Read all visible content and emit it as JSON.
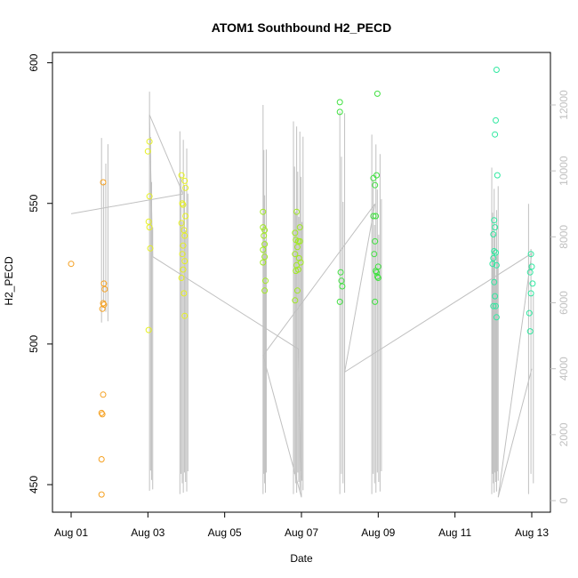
{
  "chart_data": {
    "type": "scatter",
    "title": "ATOM1 Southbound H2_PECD",
    "xlabel": "Date",
    "ylabel": "H2_PECD",
    "xlim": [
      "2018-08-01",
      "2018-08-13"
    ],
    "x_ticks": [
      {
        "label": "Aug 01",
        "x": "2018-08-01"
      },
      {
        "label": "Aug 03",
        "x": "2018-08-03"
      },
      {
        "label": "Aug 05",
        "x": "2018-08-05"
      },
      {
        "label": "Aug 07",
        "x": "2018-08-07"
      },
      {
        "label": "Aug 09",
        "x": "2018-08-09"
      },
      {
        "label": "Aug 11",
        "x": "2018-08-11"
      },
      {
        "label": "Aug 13",
        "x": "2018-08-13"
      }
    ],
    "y_left": {
      "ylim": [
        443,
        603
      ],
      "ticks": [
        450,
        500,
        550,
        600
      ]
    },
    "y_right": {
      "ylim": [
        -300,
        13000
      ],
      "ticks": [
        0,
        2000,
        4000,
        6000,
        8000,
        10000,
        12000
      ],
      "color": "#c0c0c0"
    },
    "grid": false,
    "legend": "none",
    "points": [
      {
        "x": "2018-08-01T00:00",
        "y": 528.5,
        "color": "#f5a020"
      },
      {
        "x": "2018-08-01T20:00",
        "y": 557.5,
        "color": "#f5a020"
      },
      {
        "x": "2018-08-01T20:30",
        "y": 521.5,
        "color": "#f5a020"
      },
      {
        "x": "2018-08-01T21:00",
        "y": 519.5,
        "color": "#f5a020"
      },
      {
        "x": "2018-08-01T20:00",
        "y": 514.5,
        "color": "#f5a020"
      },
      {
        "x": "2018-08-01T20:30",
        "y": 514.0,
        "color": "#f5a020"
      },
      {
        "x": "2018-08-01T19:30",
        "y": 512.5,
        "color": "#f5a020"
      },
      {
        "x": "2018-08-01T20:00",
        "y": 482.0,
        "color": "#f5a020"
      },
      {
        "x": "2018-08-01T19:00",
        "y": 475.5,
        "color": "#f5a020"
      },
      {
        "x": "2018-08-01T19:30",
        "y": 475.0,
        "color": "#f5a020"
      },
      {
        "x": "2018-08-01T19:00",
        "y": 459.0,
        "color": "#f5a020"
      },
      {
        "x": "2018-08-01T19:00",
        "y": 446.5,
        "color": "#f5a020"
      },
      {
        "x": "2018-08-03T01:00",
        "y": 572.0,
        "color": "#e6f020"
      },
      {
        "x": "2018-08-03T00:00",
        "y": 568.5,
        "color": "#e6f020"
      },
      {
        "x": "2018-08-03T01:00",
        "y": 552.5,
        "color": "#e6f020"
      },
      {
        "x": "2018-08-03T00:30",
        "y": 543.5,
        "color": "#e6f020"
      },
      {
        "x": "2018-08-03T01:00",
        "y": 541.5,
        "color": "#e6f020"
      },
      {
        "x": "2018-08-03T01:30",
        "y": 534.0,
        "color": "#e6f020"
      },
      {
        "x": "2018-08-03T00:30",
        "y": 505.0,
        "color": "#e6f020"
      },
      {
        "x": "2018-08-03T21:00",
        "y": 560.0,
        "color": "#e6f020"
      },
      {
        "x": "2018-08-03T23:00",
        "y": 558.0,
        "color": "#e6f020"
      },
      {
        "x": "2018-08-03T23:30",
        "y": 555.5,
        "color": "#e6f020"
      },
      {
        "x": "2018-08-03T21:30",
        "y": 550.0,
        "color": "#e6f020"
      },
      {
        "x": "2018-08-03T22:00",
        "y": 549.5,
        "color": "#e6f020"
      },
      {
        "x": "2018-08-03T23:30",
        "y": 545.5,
        "color": "#e6f020"
      },
      {
        "x": "2018-08-03T21:00",
        "y": 543.0,
        "color": "#e6f020"
      },
      {
        "x": "2018-08-03T22:30",
        "y": 540.5,
        "color": "#e6f020"
      },
      {
        "x": "2018-08-03T23:00",
        "y": 538.5,
        "color": "#e6f020"
      },
      {
        "x": "2018-08-03T22:00",
        "y": 535.0,
        "color": "#e6f020"
      },
      {
        "x": "2018-08-03T21:30",
        "y": 532.0,
        "color": "#e6f020"
      },
      {
        "x": "2018-08-03T23:00",
        "y": 529.5,
        "color": "#e6f020"
      },
      {
        "x": "2018-08-03T22:00",
        "y": 526.5,
        "color": "#e6f020"
      },
      {
        "x": "2018-08-03T21:00",
        "y": 523.5,
        "color": "#e6f020"
      },
      {
        "x": "2018-08-03T22:30",
        "y": 518.0,
        "color": "#e6f020"
      },
      {
        "x": "2018-08-03T23:00",
        "y": 510.0,
        "color": "#e6f020"
      },
      {
        "x": "2018-08-06T00:00",
        "y": 547.0,
        "color": "#a0ea20"
      },
      {
        "x": "2018-08-06T00:00",
        "y": 541.5,
        "color": "#a0ea20"
      },
      {
        "x": "2018-08-06T01:00",
        "y": 540.5,
        "color": "#a0ea20"
      },
      {
        "x": "2018-08-06T00:30",
        "y": 538.5,
        "color": "#a0ea20"
      },
      {
        "x": "2018-08-06T01:00",
        "y": 535.5,
        "color": "#a0ea20"
      },
      {
        "x": "2018-08-06T00:00",
        "y": 533.5,
        "color": "#a0ea20"
      },
      {
        "x": "2018-08-06T01:00",
        "y": 531.0,
        "color": "#a0ea20"
      },
      {
        "x": "2018-08-06T00:00",
        "y": 529.0,
        "color": "#a0ea20"
      },
      {
        "x": "2018-08-06T01:30",
        "y": 522.5,
        "color": "#a0ea20"
      },
      {
        "x": "2018-08-06T01:00",
        "y": 519.0,
        "color": "#a0ea20"
      },
      {
        "x": "2018-08-06T20:00",
        "y": 539.5,
        "color": "#a0ea20"
      },
      {
        "x": "2018-08-06T21:00",
        "y": 547.0,
        "color": "#a0ea20"
      },
      {
        "x": "2018-08-06T20:30",
        "y": 537.0,
        "color": "#a0ea20"
      },
      {
        "x": "2018-08-06T22:00",
        "y": 536.5,
        "color": "#a0ea20"
      },
      {
        "x": "2018-08-06T23:00",
        "y": 541.5,
        "color": "#a0ea20"
      },
      {
        "x": "2018-08-06T21:30",
        "y": 534.5,
        "color": "#a0ea20"
      },
      {
        "x": "2018-08-06T20:00",
        "y": 532.0,
        "color": "#a0ea20"
      },
      {
        "x": "2018-08-06T22:30",
        "y": 530.5,
        "color": "#a0ea20"
      },
      {
        "x": "2018-08-06T21:00",
        "y": 528.0,
        "color": "#a0ea20"
      },
      {
        "x": "2018-08-06T23:30",
        "y": 529.0,
        "color": "#a0ea20"
      },
      {
        "x": "2018-08-06T20:30",
        "y": 526.0,
        "color": "#a0ea20"
      },
      {
        "x": "2018-08-06T22:00",
        "y": 526.5,
        "color": "#a0ea20"
      },
      {
        "x": "2018-08-06T23:00",
        "y": 536.5,
        "color": "#a0ea20"
      },
      {
        "x": "2018-08-06T21:30",
        "y": 519.0,
        "color": "#a0ea20"
      },
      {
        "x": "2018-08-06T20:00",
        "y": 515.5,
        "color": "#a0ea20"
      },
      {
        "x": "2018-08-08T00:00",
        "y": 586.0,
        "color": "#40e040"
      },
      {
        "x": "2018-08-08T00:00",
        "y": 582.5,
        "color": "#40e040"
      },
      {
        "x": "2018-08-08T00:30",
        "y": 525.5,
        "color": "#40e040"
      },
      {
        "x": "2018-08-08T01:00",
        "y": 522.5,
        "color": "#40e040"
      },
      {
        "x": "2018-08-08T01:30",
        "y": 520.5,
        "color": "#40e040"
      },
      {
        "x": "2018-08-08T00:00",
        "y": 515.0,
        "color": "#40e040"
      },
      {
        "x": "2018-08-08T21:00",
        "y": 559.0,
        "color": "#40e040"
      },
      {
        "x": "2018-08-08T22:00",
        "y": 556.5,
        "color": "#40e040"
      },
      {
        "x": "2018-08-08T23:00",
        "y": 560.0,
        "color": "#40e040"
      },
      {
        "x": "2018-08-08T23:30",
        "y": 589.0,
        "color": "#40e040"
      },
      {
        "x": "2018-08-08T21:00",
        "y": 545.5,
        "color": "#40e040"
      },
      {
        "x": "2018-08-08T22:30",
        "y": 545.5,
        "color": "#40e040"
      },
      {
        "x": "2018-08-08T22:00",
        "y": 536.5,
        "color": "#40e040"
      },
      {
        "x": "2018-08-08T21:30",
        "y": 532.0,
        "color": "#40e040"
      },
      {
        "x": "2018-08-09T00:00",
        "y": 527.5,
        "color": "#40e040"
      },
      {
        "x": "2018-08-08T23:00",
        "y": 525.5,
        "color": "#40e040"
      },
      {
        "x": "2018-08-08T22:30",
        "y": 526.0,
        "color": "#40e040"
      },
      {
        "x": "2018-08-08T23:30",
        "y": 524.0,
        "color": "#40e040"
      },
      {
        "x": "2018-08-09T00:00",
        "y": 523.5,
        "color": "#40e040"
      },
      {
        "x": "2018-08-08T22:00",
        "y": 515.0,
        "color": "#40e040"
      },
      {
        "x": "2018-08-12T02:00",
        "y": 597.5,
        "color": "#30e8a0"
      },
      {
        "x": "2018-08-12T01:30",
        "y": 579.5,
        "color": "#30e8a0"
      },
      {
        "x": "2018-08-12T01:00",
        "y": 574.5,
        "color": "#30e8a0"
      },
      {
        "x": "2018-08-12T02:30",
        "y": 560.0,
        "color": "#30e8a0"
      },
      {
        "x": "2018-08-12T00:30",
        "y": 544.0,
        "color": "#30e8a0"
      },
      {
        "x": "2018-08-12T01:00",
        "y": 541.5,
        "color": "#30e8a0"
      },
      {
        "x": "2018-08-12T00:00",
        "y": 539.0,
        "color": "#30e8a0"
      },
      {
        "x": "2018-08-12T00:30",
        "y": 533.0,
        "color": "#30e8a0"
      },
      {
        "x": "2018-08-12T01:30",
        "y": 532.5,
        "color": "#30e8a0"
      },
      {
        "x": "2018-08-12T00:00",
        "y": 530.5,
        "color": "#30e8a0"
      },
      {
        "x": "2018-08-11T23:30",
        "y": 528.5,
        "color": "#30e8a0"
      },
      {
        "x": "2018-08-12T02:00",
        "y": 528.0,
        "color": "#30e8a0"
      },
      {
        "x": "2018-08-12T00:30",
        "y": 522.0,
        "color": "#30e8a0"
      },
      {
        "x": "2018-08-12T01:00",
        "y": 517.0,
        "color": "#30e8a0"
      },
      {
        "x": "2018-08-12T00:00",
        "y": 513.5,
        "color": "#30e8a0"
      },
      {
        "x": "2018-08-12T01:30",
        "y": 513.5,
        "color": "#30e8a0"
      },
      {
        "x": "2018-08-12T02:00",
        "y": 509.5,
        "color": "#30e8a0"
      },
      {
        "x": "2018-08-12T23:30",
        "y": 532.0,
        "color": "#30e8a0"
      },
      {
        "x": "2018-08-13T00:00",
        "y": 527.5,
        "color": "#30e8a0"
      },
      {
        "x": "2018-08-12T23:00",
        "y": 525.5,
        "color": "#30e8a0"
      },
      {
        "x": "2018-08-13T00:30",
        "y": 521.5,
        "color": "#30e8a0"
      },
      {
        "x": "2018-08-12T23:30",
        "y": 518.0,
        "color": "#30e8a0"
      },
      {
        "x": "2018-08-12T22:30",
        "y": 511.0,
        "color": "#30e8a0"
      },
      {
        "x": "2018-08-12T23:00",
        "y": 504.5,
        "color": "#30e8a0"
      }
    ],
    "line_series": {
      "name": "",
      "axis": "right",
      "color": "#c0c0c0",
      "points": [
        {
          "x": "2018-08-01T00:00",
          "y": 8700
        },
        {
          "x": "2018-08-03T22:00",
          "y": 9300
        },
        {
          "x": "2018-08-03T01:00",
          "y": 11700
        },
        {
          "x": "2018-08-03T03:00",
          "y": 7400
        },
        {
          "x": "2018-08-06T22:00",
          "y": 4600
        },
        {
          "x": "2018-08-07T00:00",
          "y": 100
        },
        {
          "x": "2018-08-06T00:00",
          "y": 4400
        },
        {
          "x": "2018-08-08T22:00",
          "y": 9000
        },
        {
          "x": "2018-08-08T03:00",
          "y": 3900
        },
        {
          "x": "2018-08-13T00:00",
          "y": 7500
        },
        {
          "x": "2018-08-12T03:00",
          "y": 100
        },
        {
          "x": "2018-08-13T00:00",
          "y": 4000
        }
      ]
    },
    "spikes": {
      "axis": "right",
      "color": "#c0c0c0",
      "clusters": [
        {
          "x_from": "2018-08-01T19:00",
          "x_to": "2018-08-01T23:00",
          "top": 11000,
          "bottom": 5400,
          "count": 4
        },
        {
          "x_from": "2018-08-03T01:00",
          "x_to": "2018-08-03T03:00",
          "top": 12400,
          "bottom": 300,
          "count": 4
        },
        {
          "x_from": "2018-08-03T20:00",
          "x_to": "2018-08-04T01:00",
          "top": 11200,
          "bottom": 200,
          "count": 8
        },
        {
          "x_from": "2018-08-06T00:00",
          "x_to": "2018-08-06T02:00",
          "top": 12000,
          "bottom": 200,
          "count": 5
        },
        {
          "x_from": "2018-08-06T19:00",
          "x_to": "2018-08-07T01:00",
          "top": 11500,
          "bottom": 200,
          "count": 10
        },
        {
          "x_from": "2018-08-08T00:00",
          "x_to": "2018-08-08T03:00",
          "top": 11800,
          "bottom": 200,
          "count": 4
        },
        {
          "x_from": "2018-08-08T20:00",
          "x_to": "2018-08-09T02:00",
          "top": 11100,
          "bottom": 200,
          "count": 8
        },
        {
          "x_from": "2018-08-11T23:00",
          "x_to": "2018-08-12T03:00",
          "top": 10100,
          "bottom": 200,
          "count": 9
        },
        {
          "x_from": "2018-08-12T22:00",
          "x_to": "2018-08-13T01:00",
          "top": 9000,
          "bottom": 200,
          "count": 3
        }
      ]
    }
  }
}
